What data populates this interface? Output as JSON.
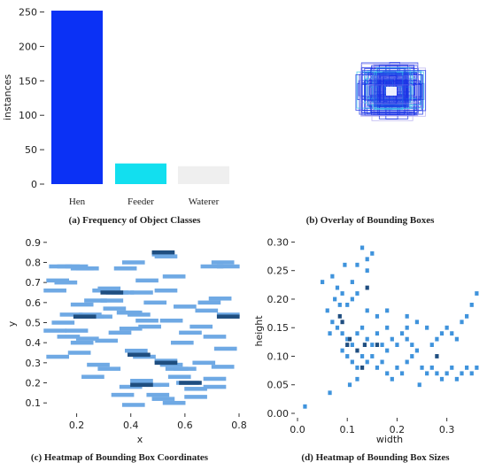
{
  "chart_data": [
    {
      "type": "bar",
      "caption": "(a) Frequency of Object Classes",
      "ylabel": "instances",
      "categories": [
        "Hen",
        "Feeder",
        "Waterer"
      ],
      "values": [
        252,
        30,
        26
      ],
      "colors": [
        "#0b31f5",
        "#12dfef",
        "#efefef"
      ],
      "yticks": [
        0,
        50,
        100,
        150,
        200,
        250
      ],
      "ylim": [
        0,
        252
      ],
      "grid": false
    },
    {
      "type": "overlay",
      "caption": "(b) Overlay of Bounding Boxes",
      "colors": [
        "#1a33e6",
        "#39c8ea",
        "#b8b0f0"
      ]
    },
    {
      "type": "heatmap",
      "caption": "(c) Heatmap of Bounding Box Coordinates",
      "xlabel": "x",
      "ylabel": "y",
      "xticks": [
        0.2,
        0.4,
        0.6,
        0.8
      ],
      "yticks": [
        0.1,
        0.2,
        0.3,
        0.4,
        0.5,
        0.6,
        0.7,
        0.8,
        0.9
      ],
      "xlim": [
        0.1,
        0.8
      ],
      "ylim": [
        0.07,
        0.93
      ],
      "points": [
        [
          0.14,
          0.78
        ],
        [
          0.17,
          0.78
        ],
        [
          0.2,
          0.78
        ],
        [
          0.22,
          0.77
        ],
        [
          0.24,
          0.77
        ],
        [
          0.13,
          0.71
        ],
        [
          0.16,
          0.7
        ],
        [
          0.12,
          0.66
        ],
        [
          0.22,
          0.59
        ],
        [
          0.18,
          0.54
        ],
        [
          0.23,
          0.53
        ],
        [
          0.25,
          0.54
        ],
        [
          0.26,
          0.53
        ],
        [
          0.2,
          0.46
        ],
        [
          0.12,
          0.46
        ],
        [
          0.17,
          0.43
        ],
        [
          0.22,
          0.4
        ],
        [
          0.24,
          0.42
        ],
        [
          0.13,
          0.33
        ],
        [
          0.21,
          0.35
        ],
        [
          0.3,
          0.66
        ],
        [
          0.32,
          0.67
        ],
        [
          0.35,
          0.65
        ],
        [
          0.37,
          0.65
        ],
        [
          0.33,
          0.61
        ],
        [
          0.38,
          0.77
        ],
        [
          0.41,
          0.8
        ],
        [
          0.46,
          0.71
        ],
        [
          0.44,
          0.65
        ],
        [
          0.29,
          0.53
        ],
        [
          0.34,
          0.57
        ],
        [
          0.39,
          0.55
        ],
        [
          0.4,
          0.55
        ],
        [
          0.43,
          0.54
        ],
        [
          0.46,
          0.51
        ],
        [
          0.47,
          0.48
        ],
        [
          0.4,
          0.47
        ],
        [
          0.36,
          0.45
        ],
        [
          0.31,
          0.41
        ],
        [
          0.42,
          0.36
        ],
        [
          0.45,
          0.33
        ],
        [
          0.28,
          0.29
        ],
        [
          0.32,
          0.27
        ],
        [
          0.26,
          0.23
        ],
        [
          0.44,
          0.21
        ],
        [
          0.47,
          0.19
        ],
        [
          0.5,
          0.19
        ],
        [
          0.53,
          0.31
        ],
        [
          0.55,
          0.29
        ],
        [
          0.57,
          0.27
        ],
        [
          0.6,
          0.27
        ],
        [
          0.58,
          0.23
        ],
        [
          0.61,
          0.2
        ],
        [
          0.64,
          0.17
        ],
        [
          0.5,
          0.14
        ],
        [
          0.52,
          0.12
        ],
        [
          0.56,
          0.1
        ],
        [
          0.64,
          0.13
        ],
        [
          0.59,
          0.4
        ],
        [
          0.62,
          0.45
        ],
        [
          0.66,
          0.48
        ],
        [
          0.71,
          0.43
        ],
        [
          0.75,
          0.37
        ],
        [
          0.76,
          0.54
        ],
        [
          0.68,
          0.56
        ],
        [
          0.73,
          0.62
        ],
        [
          0.69,
          0.6
        ],
        [
          0.76,
          0.78
        ],
        [
          0.74,
          0.8
        ],
        [
          0.7,
          0.78
        ],
        [
          0.52,
          0.84
        ],
        [
          0.53,
          0.83
        ],
        [
          0.56,
          0.73
        ],
        [
          0.53,
          0.66
        ],
        [
          0.6,
          0.58
        ],
        [
          0.41,
          0.09
        ],
        [
          0.37,
          0.14
        ],
        [
          0.4,
          0.18
        ],
        [
          0.71,
          0.22
        ],
        [
          0.67,
          0.3
        ],
        [
          0.49,
          0.6
        ],
        [
          0.55,
          0.51
        ],
        [
          0.27,
          0.61
        ],
        [
          0.15,
          0.5
        ],
        [
          0.71,
          0.18
        ],
        [
          0.74,
          0.28
        ]
      ],
      "dark_points": [
        [
          0.52,
          0.85
        ],
        [
          0.76,
          0.53
        ],
        [
          0.23,
          0.53
        ],
        [
          0.53,
          0.3
        ],
        [
          0.62,
          0.2
        ],
        [
          0.43,
          0.34
        ],
        [
          0.33,
          0.65
        ],
        [
          0.44,
          0.19
        ]
      ],
      "cell": [
        0.016,
        0.02
      ],
      "light_color": "#6fa9e4",
      "dark_color": "#1f4e80"
    },
    {
      "type": "heatmap",
      "caption": "(d) Heatmap of Bounding Box Sizes",
      "xlabel": "width",
      "ylabel": "height",
      "xticks": [
        0.0,
        0.1,
        0.2,
        0.3
      ],
      "yticks": [
        0.0,
        0.05,
        0.1,
        0.15,
        0.2,
        0.25,
        0.3
      ],
      "xtick_labels": [
        "0.0",
        "0.1",
        "0.2",
        "0.3"
      ],
      "ytick_labels": [
        "0.00",
        "0.05",
        "0.10",
        "0.15",
        "0.20",
        "0.25",
        "0.30"
      ],
      "xlim": [
        0.0,
        0.37
      ],
      "ylim": [
        0.0,
        0.31
      ],
      "points": [
        [
          0.015,
          0.012
        ],
        [
          0.065,
          0.036
        ],
        [
          0.05,
          0.23
        ],
        [
          0.07,
          0.24
        ],
        [
          0.08,
          0.22
        ],
        [
          0.075,
          0.2
        ],
        [
          0.06,
          0.18
        ],
        [
          0.09,
          0.21
        ],
        [
          0.1,
          0.19
        ],
        [
          0.11,
          0.2
        ],
        [
          0.12,
          0.21
        ],
        [
          0.14,
          0.25
        ],
        [
          0.14,
          0.27
        ],
        [
          0.13,
          0.29
        ],
        [
          0.15,
          0.28
        ],
        [
          0.12,
          0.26
        ],
        [
          0.07,
          0.16
        ],
        [
          0.08,
          0.15
        ],
        [
          0.09,
          0.14
        ],
        [
          0.1,
          0.13
        ],
        [
          0.11,
          0.12
        ],
        [
          0.12,
          0.14
        ],
        [
          0.13,
          0.15
        ],
        [
          0.14,
          0.13
        ],
        [
          0.15,
          0.12
        ],
        [
          0.16,
          0.14
        ],
        [
          0.17,
          0.12
        ],
        [
          0.18,
          0.11
        ],
        [
          0.19,
          0.13
        ],
        [
          0.2,
          0.12
        ],
        [
          0.21,
          0.14
        ],
        [
          0.22,
          0.13
        ],
        [
          0.23,
          0.12
        ],
        [
          0.24,
          0.11
        ],
        [
          0.09,
          0.11
        ],
        [
          0.1,
          0.1
        ],
        [
          0.11,
          0.09
        ],
        [
          0.12,
          0.08
        ],
        [
          0.13,
          0.1
        ],
        [
          0.14,
          0.09
        ],
        [
          0.15,
          0.1
        ],
        [
          0.16,
          0.08
        ],
        [
          0.17,
          0.09
        ],
        [
          0.18,
          0.07
        ],
        [
          0.19,
          0.06
        ],
        [
          0.2,
          0.08
        ],
        [
          0.21,
          0.07
        ],
        [
          0.22,
          0.09
        ],
        [
          0.23,
          0.1
        ],
        [
          0.25,
          0.08
        ],
        [
          0.26,
          0.07
        ],
        [
          0.27,
          0.08
        ],
        [
          0.28,
          0.07
        ],
        [
          0.29,
          0.06
        ],
        [
          0.3,
          0.07
        ],
        [
          0.31,
          0.08
        ],
        [
          0.32,
          0.06
        ],
        [
          0.33,
          0.07
        ],
        [
          0.34,
          0.08
        ],
        [
          0.35,
          0.07
        ],
        [
          0.36,
          0.08
        ],
        [
          0.27,
          0.12
        ],
        [
          0.28,
          0.13
        ],
        [
          0.29,
          0.14
        ],
        [
          0.3,
          0.15
        ],
        [
          0.31,
          0.14
        ],
        [
          0.32,
          0.13
        ],
        [
          0.33,
          0.16
        ],
        [
          0.34,
          0.17
        ],
        [
          0.35,
          0.19
        ],
        [
          0.36,
          0.21
        ],
        [
          0.26,
          0.15
        ],
        [
          0.24,
          0.16
        ],
        [
          0.22,
          0.17
        ],
        [
          0.18,
          0.18
        ],
        [
          0.16,
          0.17
        ],
        [
          0.11,
          0.23
        ],
        [
          0.095,
          0.26
        ],
        [
          0.085,
          0.19
        ],
        [
          0.065,
          0.14
        ],
        [
          0.105,
          0.05
        ],
        [
          0.12,
          0.06
        ],
        [
          0.245,
          0.05
        ],
        [
          0.22,
          0.15
        ],
        [
          0.18,
          0.15
        ],
        [
          0.14,
          0.18
        ]
      ],
      "dark_points": [
        [
          0.105,
          0.13
        ],
        [
          0.12,
          0.11
        ],
        [
          0.135,
          0.12
        ],
        [
          0.13,
          0.08
        ],
        [
          0.085,
          0.17
        ],
        [
          0.28,
          0.1
        ],
        [
          0.16,
          0.12
        ],
        [
          0.14,
          0.22
        ],
        [
          0.09,
          0.16
        ],
        [
          0.1,
          0.12
        ]
      ],
      "cell": [
        0.0075,
        0.0075
      ],
      "light_color": "#3f93dc",
      "dark_color": "#1f4e80"
    }
  ]
}
